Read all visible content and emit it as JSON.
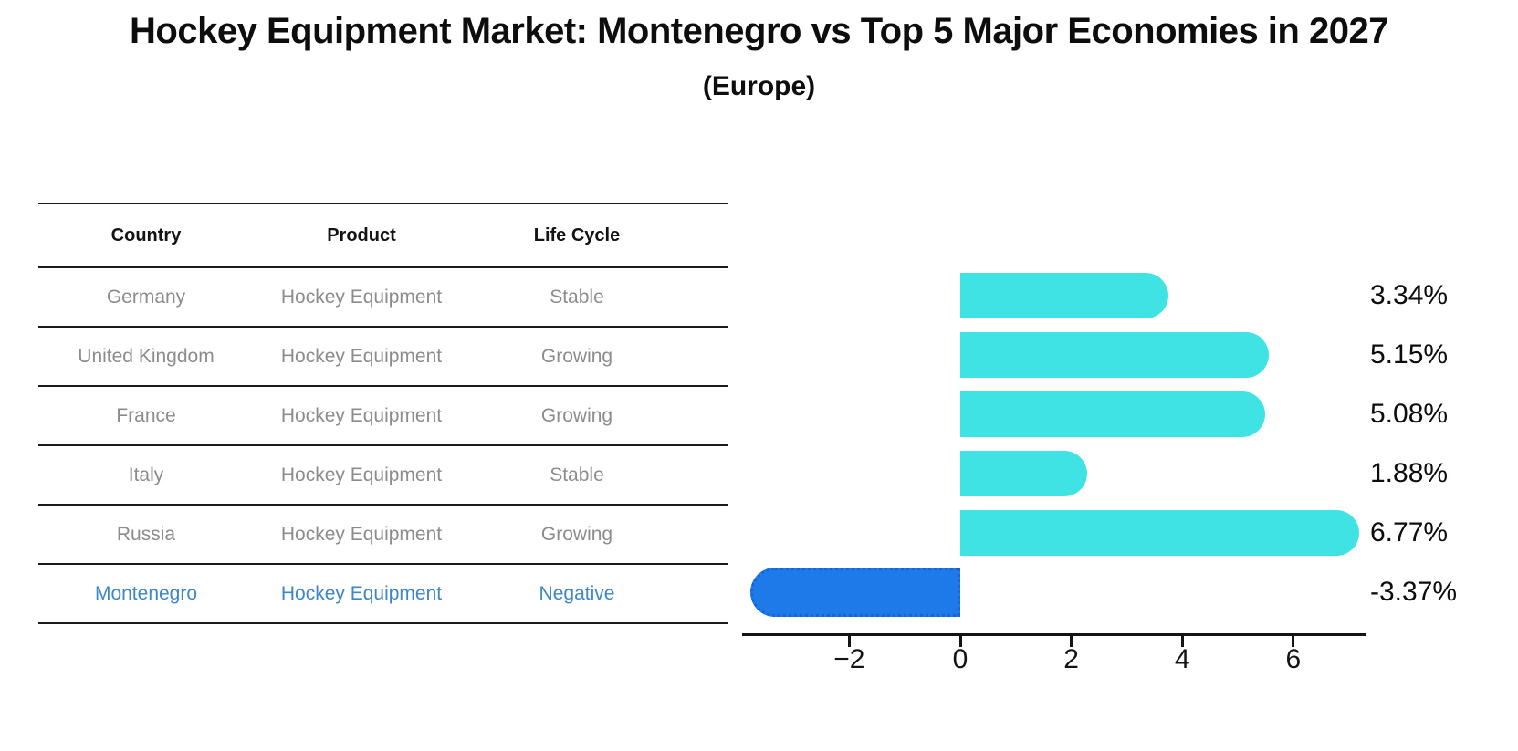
{
  "header": {
    "title": "Hockey Equipment Market: Montenegro vs Top 5 Major Economies in 2027",
    "subtitle": "(Europe)"
  },
  "table": {
    "headers": {
      "country": "Country",
      "product": "Product",
      "life_cycle": "Life Cycle"
    },
    "rows": [
      {
        "country": "Germany",
        "product": "Hockey Equipment",
        "life_cycle": "Stable",
        "highlight": false
      },
      {
        "country": "United Kingdom",
        "product": "Hockey Equipment",
        "life_cycle": "Growing",
        "highlight": false
      },
      {
        "country": "France",
        "product": "Hockey Equipment",
        "life_cycle": "Growing",
        "highlight": false
      },
      {
        "country": "Italy",
        "product": "Hockey Equipment",
        "life_cycle": "Stable",
        "highlight": false
      },
      {
        "country": "Russia",
        "product": "Hockey Equipment",
        "life_cycle": "Growing",
        "highlight": false
      },
      {
        "country": "Montenegro",
        "product": "Hockey Equipment",
        "life_cycle": "Negative",
        "highlight": true
      }
    ]
  },
  "chart_data": {
    "type": "bar",
    "orientation": "horizontal",
    "title": "Hockey Equipment Market: Montenegro vs Top 5 Major Economies in 2027 (Europe)",
    "categories": [
      "Germany",
      "United Kingdom",
      "France",
      "Italy",
      "Russia",
      "Montenegro"
    ],
    "values": [
      3.34,
      5.15,
      5.08,
      1.88,
      6.77,
      -3.37
    ],
    "value_labels": [
      "3.34%",
      "5.15%",
      "5.08%",
      "1.88%",
      "6.77%",
      "-3.37%"
    ],
    "unit": "percent",
    "highlight_index": 5,
    "x_ticks": [
      {
        "value": -2,
        "label": "−2"
      },
      {
        "value": 0,
        "label": "0"
      },
      {
        "value": 2,
        "label": "2"
      },
      {
        "value": 4,
        "label": "4"
      },
      {
        "value": 6,
        "label": "6"
      }
    ],
    "xlim": [
      -3.9,
      7.3
    ],
    "grid": false,
    "legend": null,
    "bar_color": "#40e3e3",
    "highlight_bar_color": "#1e7ae8",
    "highlight_bar_border_color": "#1765d4"
  },
  "colors": {
    "row_text": "#8c8c8c",
    "highlight_text": "#3f86c8",
    "heading_text": "#0d0d0d",
    "line": "#1a1a1a"
  }
}
